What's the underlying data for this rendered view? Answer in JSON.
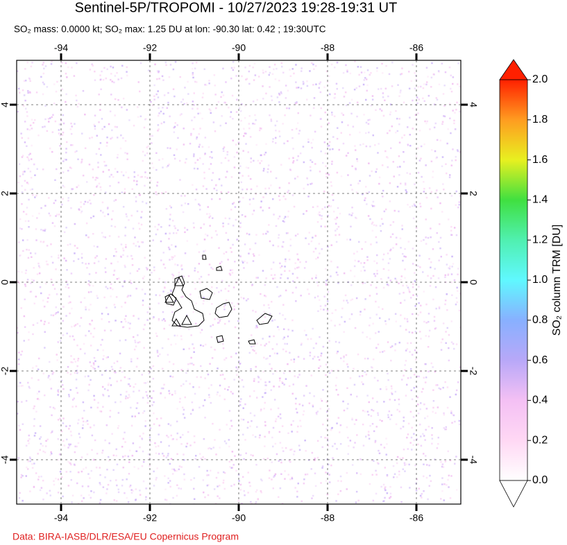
{
  "chart_data": {
    "type": "map",
    "title": "Sentinel-5P/TROPOMI - 10/27/2023 19:28-19:31 UT",
    "subtitle": "SO₂ mass: 0.0000 kt; SO₂ max: 1.25 DU at lon: -90.30 lat: 0.42 ; 19:30UTC",
    "xlim": [
      -95,
      -85
    ],
    "ylim": [
      -5,
      5
    ],
    "xticks": [
      -94,
      -92,
      -90,
      -88,
      -86
    ],
    "yticks": [
      -4,
      -2,
      0,
      2,
      4
    ],
    "grid": true,
    "colorbar": {
      "label": "SO₂ column TRM [DU]",
      "lim": [
        0,
        2
      ],
      "ticks": [
        {
          "value": 0,
          "label": "0.0"
        },
        0.2,
        0.4,
        0.6,
        0.8,
        {
          "value": 1,
          "label": "1.0"
        },
        1.2,
        1.4,
        1.6,
        1.8,
        {
          "value": 2,
          "label": "2.0"
        }
      ]
    },
    "credit": "Data: BIRA-IASB/DLR/ESA/EU Copernicus Program"
  }
}
